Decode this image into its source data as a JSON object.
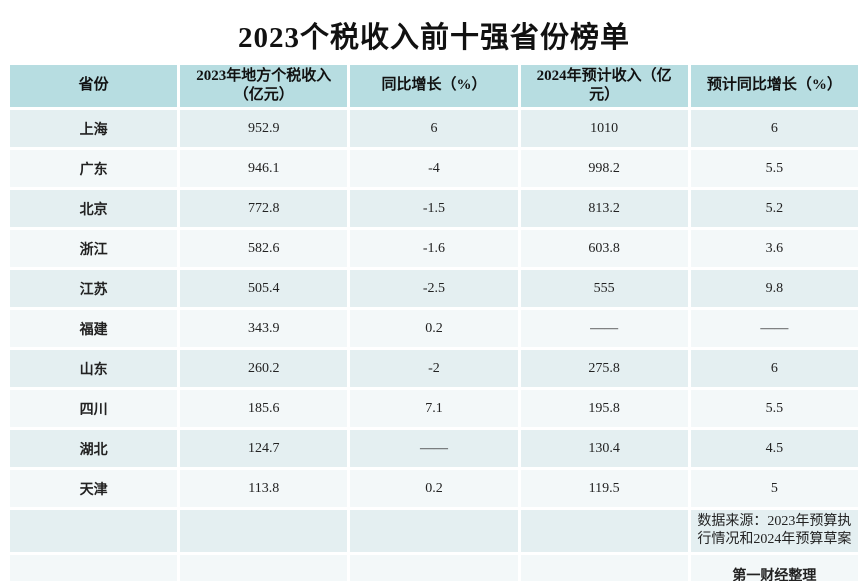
{
  "title": "2023个税收入前十强省份榜单",
  "colors": {
    "page_bg": "#ffffff",
    "title_color": "#111111",
    "header_bg": "#b7dde1",
    "row_odd_bg": "#e4eff1",
    "row_even_bg": "#f3f8f9"
  },
  "chart_data": {
    "type": "table",
    "title": "2023个税收入前十强省份榜单",
    "columns": [
      "省份",
      "2023年地方个税收入（亿元）",
      "同比增长（%）",
      "2024年预计收入（亿元）",
      "预计同比增长（%）"
    ],
    "rows": [
      {
        "province": "上海",
        "income_2023": "952.9",
        "yoy_growth": "6",
        "income_2024": "1010",
        "est_yoy_growth": "6"
      },
      {
        "province": "广东",
        "income_2023": "946.1",
        "yoy_growth": "-4",
        "income_2024": "998.2",
        "est_yoy_growth": "5.5"
      },
      {
        "province": "北京",
        "income_2023": "772.8",
        "yoy_growth": "-1.5",
        "income_2024": "813.2",
        "est_yoy_growth": "5.2"
      },
      {
        "province": "浙江",
        "income_2023": "582.6",
        "yoy_growth": "-1.6",
        "income_2024": "603.8",
        "est_yoy_growth": "3.6"
      },
      {
        "province": "江苏",
        "income_2023": "505.4",
        "yoy_growth": "-2.5",
        "income_2024": "555",
        "est_yoy_growth": "9.8"
      },
      {
        "province": "福建",
        "income_2023": "343.9",
        "yoy_growth": "0.2",
        "income_2024": "——",
        "est_yoy_growth": "——"
      },
      {
        "province": "山东",
        "income_2023": "260.2",
        "yoy_growth": "-2",
        "income_2024": "275.8",
        "est_yoy_growth": "6"
      },
      {
        "province": "四川",
        "income_2023": "185.6",
        "yoy_growth": "7.1",
        "income_2024": "195.8",
        "est_yoy_growth": "5.5"
      },
      {
        "province": "湖北",
        "income_2023": "124.7",
        "yoy_growth": "——",
        "income_2024": "130.4",
        "est_yoy_growth": "4.5"
      },
      {
        "province": "天津",
        "income_2023": "113.8",
        "yoy_growth": "0.2",
        "income_2024": "119.5",
        "est_yoy_growth": "5"
      }
    ],
    "source_note": "数据来源：2023年预算执行情况和2024年预算草案",
    "credit": "第一财经整理"
  }
}
